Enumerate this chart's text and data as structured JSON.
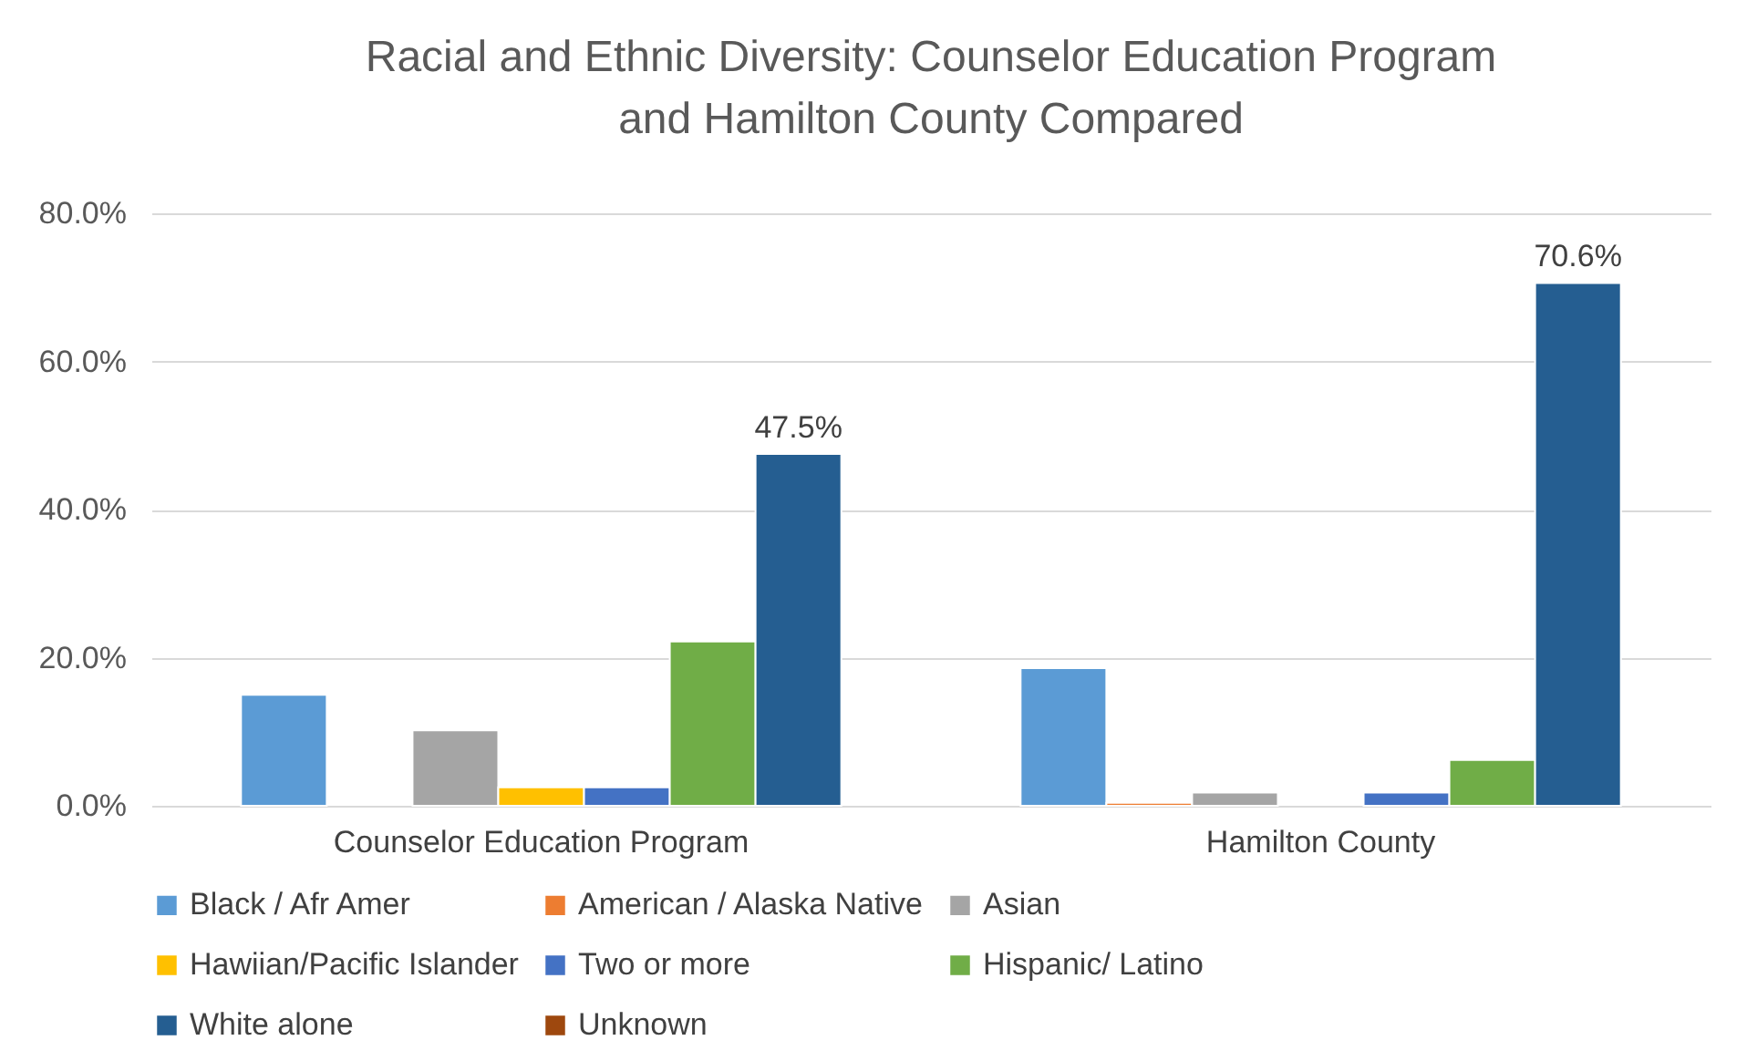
{
  "chart_data": {
    "type": "bar",
    "title": "Racial and Ethnic Diversity: Counselor Education Program and Hamilton County Compared",
    "categories": [
      "Counselor Education Program",
      "Hamilton County"
    ],
    "series": [
      {
        "name": "Black / Afr Amer",
        "color": "#5b9bd5",
        "values": [
          15.0,
          18.6
        ]
      },
      {
        "name": "American / Alaska Native",
        "color": "#ed7d31",
        "values": [
          null,
          0.4
        ]
      },
      {
        "name": "Asian",
        "color": "#a5a5a5",
        "values": [
          10.2,
          1.8
        ]
      },
      {
        "name": "Hawiian/Pacific Islander",
        "color": "#ffc000",
        "values": [
          2.5,
          null
        ]
      },
      {
        "name": "Two or more",
        "color": "#4472c4",
        "values": [
          2.5,
          1.8
        ]
      },
      {
        "name": "Hispanic/ Latino",
        "color": "#70ad47",
        "values": [
          22.2,
          6.2
        ]
      },
      {
        "name": "White alone",
        "color": "#255e91",
        "values": [
          47.5,
          70.6
        ],
        "value_labels": [
          "47.5%",
          "70.6%"
        ]
      },
      {
        "name": "Unknown",
        "color": "#9e480e",
        "values": [
          null,
          null
        ]
      }
    ],
    "ylim": [
      0,
      80
    ],
    "yticks": [
      {
        "value": 0,
        "label": "0.0%"
      },
      {
        "value": 20,
        "label": "20.0%"
      },
      {
        "value": 40,
        "label": "40.0%"
      },
      {
        "value": 60,
        "label": "60.0%"
      },
      {
        "value": 80,
        "label": "80.0%"
      }
    ],
    "grid": "y",
    "legend": "bottom"
  }
}
